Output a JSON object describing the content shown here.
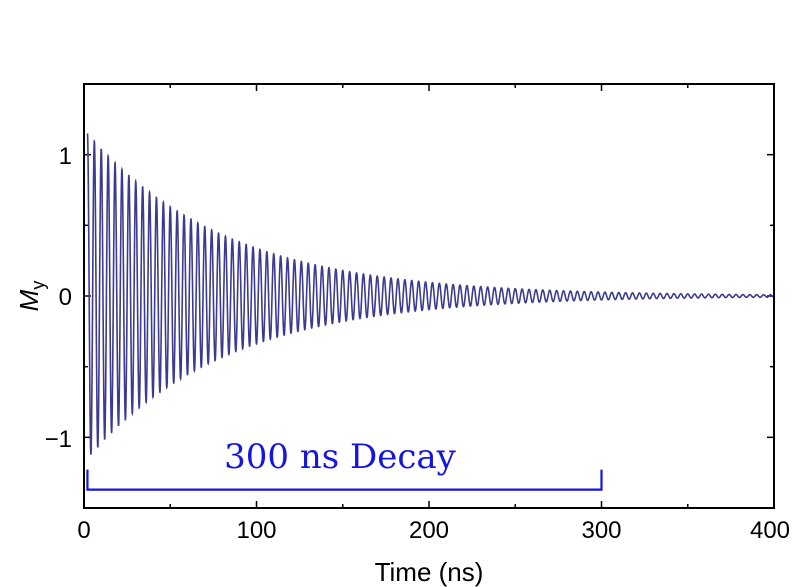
{
  "chart_data": {
    "type": "line",
    "title": "",
    "xlabel": "Time (ns)",
    "ylabel_main": "M",
    "ylabel_sub": "y",
    "xlim": [
      0,
      400
    ],
    "ylim": [
      -1.5,
      1.5
    ],
    "x_ticks": [
      0,
      100,
      200,
      300,
      400
    ],
    "x_tick_labels": [
      "0",
      "100",
      "200",
      "300",
      "400"
    ],
    "y_ticks": [
      -1,
      0,
      1
    ],
    "y_tick_labels": [
      "−1",
      "0",
      "1"
    ],
    "grid": false,
    "legend": "none",
    "series": [
      {
        "color": "#3b3b8f",
        "model": "damped_cosine",
        "amplitude": 1.15,
        "decay_time_ns": 80,
        "period_ns": 4,
        "x_start_ns": 2,
        "x_end_ns": 400
      }
    ],
    "annotation": {
      "text": "300 ns Decay",
      "color": "#1515e0",
      "bracket_start_ns": 2,
      "bracket_end_ns": 300,
      "bracket_y": -1.37
    }
  }
}
